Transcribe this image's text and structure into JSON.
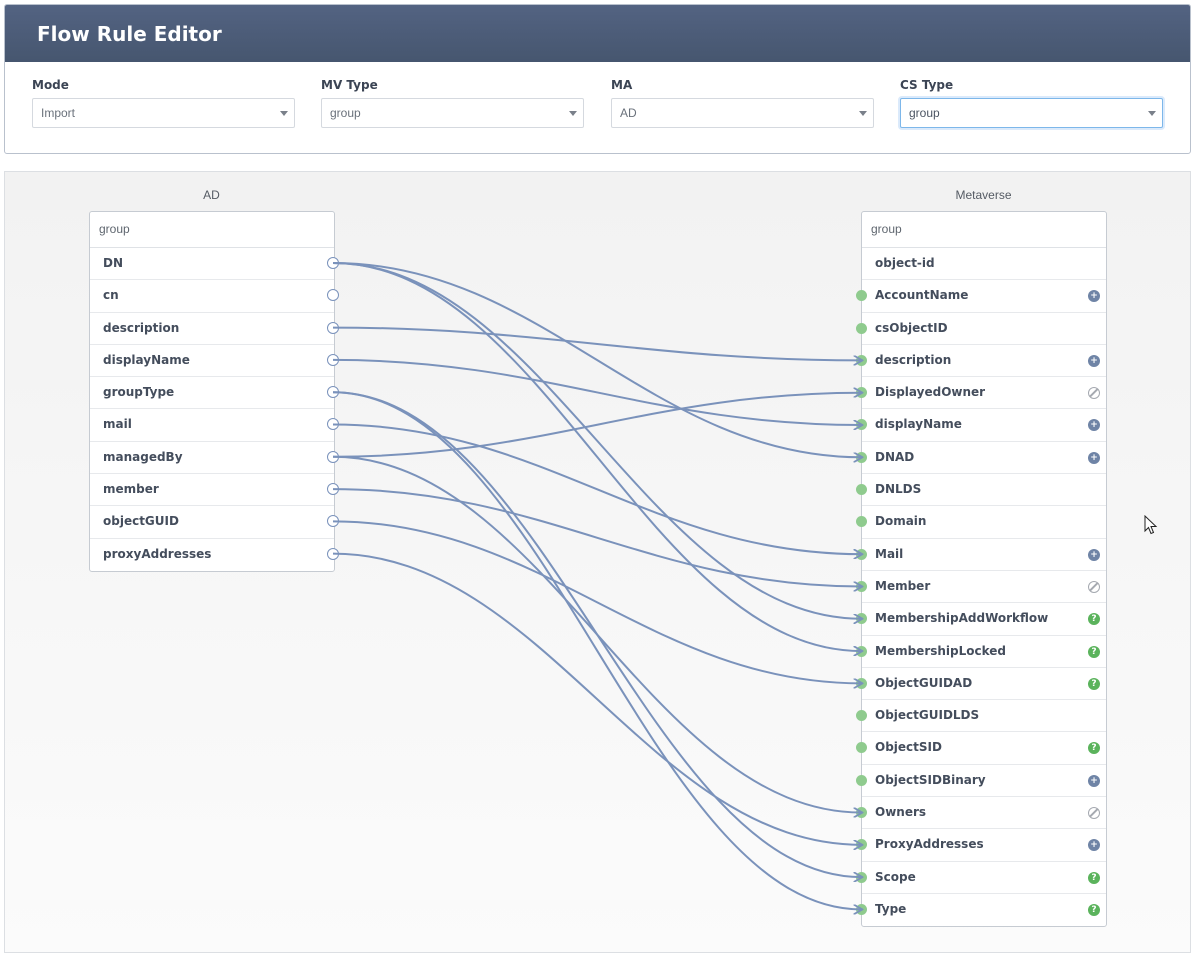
{
  "header": {
    "title": "Flow Rule Editor"
  },
  "filters": {
    "mode": {
      "label": "Mode",
      "value": "Import"
    },
    "mv_type": {
      "label": "MV Type",
      "value": "group"
    },
    "ma": {
      "label": "MA",
      "value": "AD"
    },
    "cs_type": {
      "label": "CS Type",
      "value": "group"
    }
  },
  "source": {
    "title": "AD",
    "object_type": "group",
    "attributes": [
      "DN",
      "cn",
      "description",
      "displayName",
      "groupType",
      "mail",
      "managedBy",
      "member",
      "objectGUID",
      "proxyAddresses"
    ]
  },
  "target": {
    "title": "Metaverse",
    "object_type": "group",
    "attributes": [
      {
        "name": "object-id",
        "badge": ""
      },
      {
        "name": "AccountName",
        "badge": "plus"
      },
      {
        "name": "csObjectID",
        "badge": ""
      },
      {
        "name": "description",
        "badge": "plus"
      },
      {
        "name": "DisplayedOwner",
        "badge": "none"
      },
      {
        "name": "displayName",
        "badge": "plus"
      },
      {
        "name": "DNAD",
        "badge": "plus"
      },
      {
        "name": "DNLDS",
        "badge": ""
      },
      {
        "name": "Domain",
        "badge": ""
      },
      {
        "name": "Mail",
        "badge": "plus"
      },
      {
        "name": "Member",
        "badge": "none"
      },
      {
        "name": "MembershipAddWorkflow",
        "badge": "help"
      },
      {
        "name": "MembershipLocked",
        "badge": "help"
      },
      {
        "name": "ObjectGUIDAD",
        "badge": "help"
      },
      {
        "name": "ObjectGUIDLDS",
        "badge": ""
      },
      {
        "name": "ObjectSID",
        "badge": "help"
      },
      {
        "name": "ObjectSIDBinary",
        "badge": "plus"
      },
      {
        "name": "Owners",
        "badge": "none"
      },
      {
        "name": "ProxyAddresses",
        "badge": "plus"
      },
      {
        "name": "Scope",
        "badge": "help"
      },
      {
        "name": "Type",
        "badge": "help"
      }
    ]
  },
  "flows": [
    {
      "from": "DN",
      "to": "DNAD"
    },
    {
      "from": "DN",
      "to": "MembershipAddWorkflow"
    },
    {
      "from": "DN",
      "to": "MembershipLocked"
    },
    {
      "from": "description",
      "to": "description"
    },
    {
      "from": "displayName",
      "to": "displayName"
    },
    {
      "from": "groupType",
      "to": "Scope"
    },
    {
      "from": "groupType",
      "to": "Type"
    },
    {
      "from": "mail",
      "to": "Mail"
    },
    {
      "from": "managedBy",
      "to": "DisplayedOwner"
    },
    {
      "from": "managedBy",
      "to": "Owners"
    },
    {
      "from": "member",
      "to": "Member"
    },
    {
      "from": "objectGUID",
      "to": "ObjectGUIDAD"
    },
    {
      "from": "proxyAddresses",
      "to": "ProxyAddresses"
    }
  ],
  "colors": {
    "header": "#4b5b79",
    "link": "#7a92bb",
    "port": "#8fcb8e"
  }
}
